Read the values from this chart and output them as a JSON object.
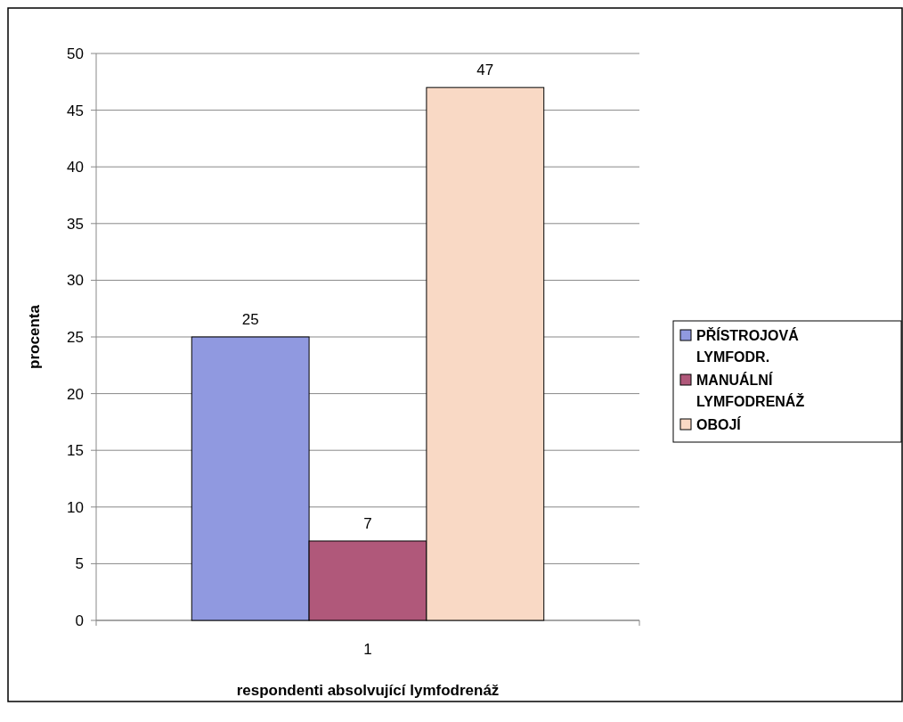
{
  "chart_data": {
    "type": "bar",
    "xlabel": "respondenti absolvující lymfodrenáž",
    "ylabel": "procenta",
    "categories": [
      "1"
    ],
    "series": [
      {
        "name": "PŘÍSTROJOVÁ LYMFODR.",
        "color": "#9099e0",
        "values": [
          25
        ]
      },
      {
        "name": "MANUÁLNÍ LYMFODRENÁŽ",
        "color": "#b0587a",
        "values": [
          7
        ]
      },
      {
        "name": "OBOJÍ",
        "color": "#f9d9c5",
        "values": [
          47
        ]
      }
    ],
    "ylim": [
      0,
      50
    ],
    "yticks": [
      0,
      5,
      10,
      15,
      20,
      25,
      30,
      35,
      40,
      45,
      50
    ],
    "grid": "y",
    "legend": "right",
    "data_labels": true
  }
}
